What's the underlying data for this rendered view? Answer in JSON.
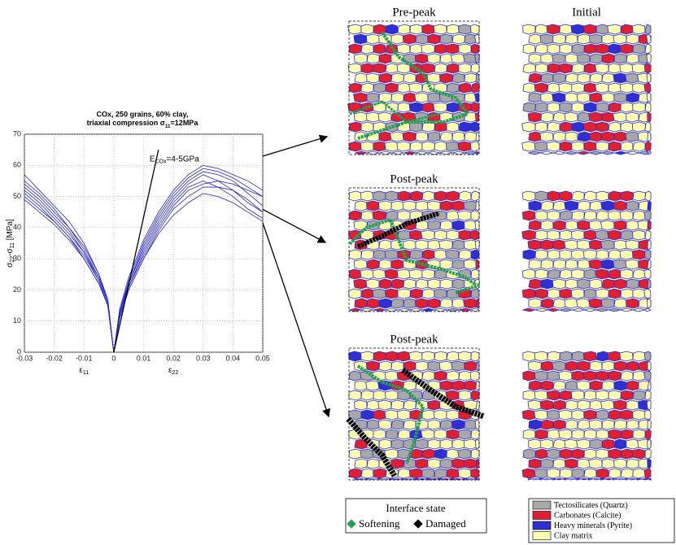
{
  "chart_data": {
    "type": "line",
    "title": "COx, 250 grains, 60% clay,",
    "title_line2": [
      "triaxial compression σ",
      "11",
      "=12MPa"
    ],
    "ylabel": [
      "σ",
      "22",
      "-σ",
      "11",
      " [MPa]"
    ],
    "xlabel_left": [
      "ε",
      "11"
    ],
    "xlabel_right": [
      "ε",
      "22"
    ],
    "annotation": [
      "E",
      "COx",
      "=4-5GPa"
    ],
    "stiffness_line": {
      "color": "#000000",
      "x": [
        0,
        0.015
      ],
      "y": [
        0,
        65
      ]
    },
    "x": [
      -0.03,
      -0.025,
      -0.02,
      -0.015,
      -0.01,
      -0.005,
      -0.002,
      0,
      0.002,
      0.005,
      0.01,
      0.015,
      0.02,
      0.025,
      0.03,
      0.035,
      0.04,
      0.045,
      0.05
    ],
    "series": [
      {
        "color": "#2020d0",
        "values": [
          57,
          52,
          47,
          42,
          35,
          25,
          17,
          0,
          14,
          24,
          36,
          45,
          52,
          57,
          60,
          59,
          57,
          55,
          52
        ]
      },
      {
        "color": "#2020d0",
        "values": [
          55,
          51,
          46,
          40,
          34,
          25,
          16,
          0,
          13,
          23,
          35,
          44,
          51,
          56,
          59,
          58,
          56,
          53,
          50
        ]
      },
      {
        "color": "#2020d0",
        "values": [
          54,
          50,
          45,
          40,
          33,
          24,
          16,
          0,
          13,
          22,
          34,
          43,
          50,
          55,
          58,
          57,
          55,
          51,
          47
        ]
      },
      {
        "color": "#2020d0",
        "values": [
          53,
          49,
          44,
          39,
          32,
          24,
          16,
          0,
          12,
          22,
          33,
          42,
          49,
          54,
          57,
          55,
          52,
          48,
          45
        ]
      },
      {
        "color": "#2020d0",
        "values": [
          52,
          48,
          43,
          38,
          32,
          23,
          15,
          0,
          12,
          21,
          32,
          41,
          48,
          53,
          55,
          53,
          50,
          46,
          43
        ]
      },
      {
        "color": "#2020d0",
        "values": [
          51,
          47,
          42,
          37,
          31,
          23,
          15,
          0,
          12,
          21,
          31,
          40,
          47,
          52,
          54,
          55,
          54,
          52,
          50
        ]
      },
      {
        "color": "#2020d0",
        "values": [
          50,
          46,
          42,
          37,
          30,
          22,
          15,
          0,
          11,
          20,
          30,
          39,
          46,
          50,
          53,
          53,
          52,
          49,
          45
        ]
      },
      {
        "color": "#2020d0",
        "values": [
          49,
          45,
          41,
          36,
          30,
          22,
          15,
          0,
          11,
          20,
          30,
          38,
          44,
          48,
          51,
          50,
          48,
          45,
          42
        ]
      }
    ],
    "xlim": [
      -0.03,
      0.05
    ],
    "xticks": [
      -0.03,
      -0.02,
      -0.01,
      0,
      0.01,
      0.02,
      0.03,
      0.04,
      0.05
    ],
    "ylim": [
      0,
      70
    ],
    "yticks": [
      0,
      10,
      20,
      30,
      40,
      50,
      60,
      70
    ],
    "grid": true
  },
  "panels": {
    "left_titles": [
      "Pre-peak",
      "Post-peak",
      "Post-peak"
    ],
    "right_title": "Initial"
  },
  "interface_legend": {
    "title": "Interface state",
    "items": [
      {
        "label": "Softening",
        "color": "#22a050"
      },
      {
        "label": "Damaged",
        "color": "#000000"
      }
    ]
  },
  "mineral_legend": {
    "items": [
      {
        "label": "Tectosilicates (Quartz)",
        "color": "#a8a8a8"
      },
      {
        "label": "Carbonates (Calcite)",
        "color": "#e02030"
      },
      {
        "label": "Heavy minerals (Pyrite)",
        "color": "#3030d0"
      },
      {
        "label": "Clay matrix",
        "color": "#ffffb0"
      }
    ]
  }
}
